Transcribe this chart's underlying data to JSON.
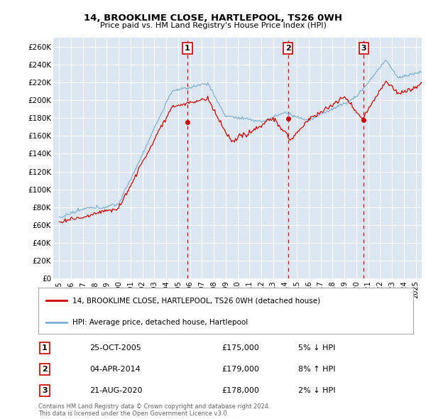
{
  "title1": "14, BROOKLIME CLOSE, HARTLEPOOL, TS26 0WH",
  "title2": "Price paid vs. HM Land Registry's House Price Index (HPI)",
  "ylabel_ticks": [
    "£0",
    "£20K",
    "£40K",
    "£60K",
    "£80K",
    "£100K",
    "£120K",
    "£140K",
    "£160K",
    "£180K",
    "£200K",
    "£220K",
    "£240K",
    "£260K"
  ],
  "ytick_values": [
    0,
    20000,
    40000,
    60000,
    80000,
    100000,
    120000,
    140000,
    160000,
    180000,
    200000,
    220000,
    240000,
    260000
  ],
  "ylim": [
    0,
    270000
  ],
  "hpi_color": "#7bafd4",
  "price_color": "#cc0000",
  "background_color": "#dce6f1",
  "sale_year_floats": [
    2005.79,
    2014.25,
    2020.63
  ],
  "sale_prices": [
    175000,
    179000,
    178000
  ],
  "sale_labels": [
    "1",
    "2",
    "3"
  ],
  "legend_label_price": "14, BROOKLIME CLOSE, HARTLEPOOL, TS26 0WH (detached house)",
  "legend_label_hpi": "HPI: Average price, detached house, Hartlepool",
  "table_rows": [
    [
      "1",
      "25-OCT-2005",
      "£175,000",
      "5% ↓ HPI"
    ],
    [
      "2",
      "04-APR-2014",
      "£179,000",
      "8% ↑ HPI"
    ],
    [
      "3",
      "21-AUG-2020",
      "£178,000",
      "2% ↓ HPI"
    ]
  ],
  "footnote": "Contains HM Land Registry data © Crown copyright and database right 2024.\nThis data is licensed under the Open Government Licence v3.0.",
  "xlim_left": 1994.5,
  "xlim_right": 2025.5
}
